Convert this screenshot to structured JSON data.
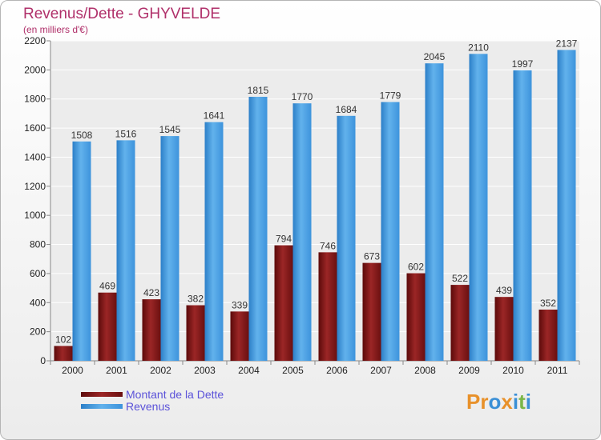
{
  "chart_data": {
    "type": "bar",
    "title": "Revenus/Dette - GHYVELDE",
    "subtitle": "(en milliers d'€)",
    "categories": [
      "2000",
      "2001",
      "2002",
      "2003",
      "2004",
      "2005",
      "2006",
      "2007",
      "2008",
      "2009",
      "2010",
      "2011"
    ],
    "series": [
      {
        "name": "Montant de la Dette",
        "color": "#8a1a1a",
        "values": [
          102,
          469,
          423,
          382,
          339,
          794,
          746,
          673,
          602,
          522,
          439,
          352
        ]
      },
      {
        "name": "Revenus",
        "color": "#4a9fe0",
        "values": [
          1508,
          1516,
          1545,
          1641,
          1815,
          1770,
          1684,
          1779,
          2045,
          2110,
          1997,
          2137
        ]
      }
    ],
    "ylim": [
      0,
      2200
    ],
    "yticks": [
      0,
      200,
      400,
      600,
      800,
      1000,
      1200,
      1400,
      1600,
      1800,
      2000,
      2200
    ],
    "grid": true,
    "legend": "bottom-left"
  },
  "logo": {
    "text": "Proxiti",
    "letters": [
      "P",
      "r",
      "o",
      "x",
      "i",
      "t",
      "i"
    ],
    "colors": [
      "#e8912a",
      "#e8912a",
      "#3a8fd6",
      "#e8912a",
      "#3a8fd6",
      "#7ab648",
      "#3a8fd6"
    ]
  }
}
